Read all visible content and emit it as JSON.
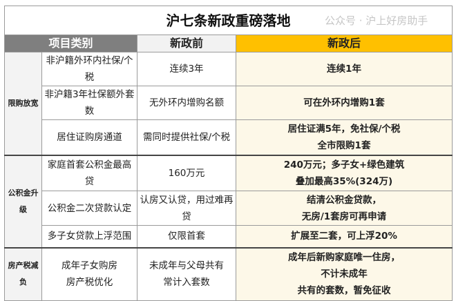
{
  "title": "沪七条新政重磅落地",
  "headers": {
    "category": "项目类别",
    "before": "新政前",
    "after": "新政后"
  },
  "groups": [
    {
      "name": "限购放宽",
      "rows": [
        {
          "item": "非沪籍外环内社保/个税",
          "before": "连续3年",
          "after": [
            "连续1年"
          ]
        },
        {
          "item": "非沪籍3年社保额外套数",
          "before": "无外环内增购名额",
          "after": [
            "可在外环内增购1套"
          ]
        },
        {
          "item": "居住证购房通道",
          "before": "需同时提供社保/个税",
          "after": [
            "居住证满5年，免社保/个税",
            "全市限购1套"
          ]
        }
      ]
    },
    {
      "name": "公积金升级",
      "rows": [
        {
          "item": "家庭首套公积金最高贷",
          "before": "160万元",
          "after": [
            "240万元；多子女+绿色建筑",
            "叠加最高35%(324万)"
          ]
        },
        {
          "item": "公积金二次贷款认定",
          "before": "认房又认贷，用过难再贷",
          "after": [
            "结清公积金贷款，",
            "无房/1套房可再申请"
          ]
        },
        {
          "item": "多子女贷款上浮范围",
          "before": "仅限首套",
          "after": [
            "扩展至二套，可上浮20%"
          ]
        }
      ]
    },
    {
      "name": "房产税减负",
      "rows": [
        {
          "item": [
            "成年子女购房",
            "房产税优化"
          ],
          "before": [
            "未成年与父母共有",
            "常计入套数"
          ],
          "after": [
            "成年后新购家庭唯一住房，",
            "不计未成年",
            "共有的套数，暂免征收"
          ]
        }
      ]
    }
  ],
  "watermark": "公众号 · 沪上好房助手"
}
